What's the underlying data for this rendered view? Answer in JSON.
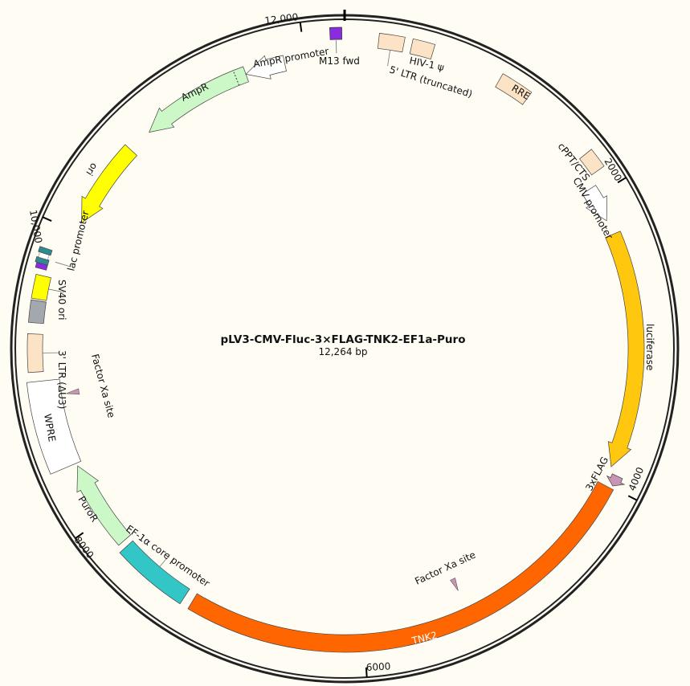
{
  "plasmid": {
    "name": "pLV3-CMV-Fluc-3×FLAG-TNK2-EF1a-Puro",
    "length_label": "12,264 bp",
    "length": 12264
  },
  "ticks": [
    {
      "pos": 2000,
      "label": "2000"
    },
    {
      "pos": 4000,
      "label": "4000"
    },
    {
      "pos": 6000,
      "label": "6000"
    },
    {
      "pos": 8000,
      "label": "8000"
    },
    {
      "pos": 10000,
      "label": "10,000"
    },
    {
      "pos": 12000,
      "label": "12,000"
    }
  ],
  "features": [
    {
      "name": "5' LTR (truncated)",
      "start": 215,
      "end": 375,
      "type": "box",
      "color": "#fde3c5"
    },
    {
      "name": "HIV-1 ψ",
      "start": 425,
      "end": 565,
      "type": "box",
      "color": "#fde3c5"
    },
    {
      "name": "RRE",
      "start": 1020,
      "end": 1230,
      "type": "box",
      "color": "#fde3c5"
    },
    {
      "name": "cPPT/CTS",
      "start": 1740,
      "end": 1870,
      "type": "box",
      "color": "#fde3c5"
    },
    {
      "name": "CMV promoter",
      "start": 1940,
      "end": 2180,
      "type": "arrow",
      "direction": "forward",
      "color": "#ffffff"
    },
    {
      "name": "luciferase",
      "start": 2280,
      "end": 3880,
      "type": "arrow",
      "direction": "forward",
      "color": "#ffc80f"
    },
    {
      "name": "3xFLAG",
      "start": 3920,
      "end": 3990,
      "type": "arrow",
      "direction": "forward",
      "color": "#c896b4"
    },
    {
      "name": "TNK2",
      "start": 4010,
      "end": 7190,
      "type": "box",
      "color": "#ff6600"
    },
    {
      "name": "Factor Xa site",
      "start": 5270,
      "end": 5282,
      "type": "site",
      "color": "#c896b4"
    },
    {
      "name": "EF-1α core promoter",
      "start": 7250,
      "end": 7760,
      "type": "box",
      "color": "#33c6c6"
    },
    {
      "name": "PuroR",
      "start": 7800,
      "end": 8390,
      "type": "arrow",
      "direction": "forward",
      "color": "#ccf8c8"
    },
    {
      "name": "WPRE",
      "start": 8410,
      "end": 8990,
      "type": "box",
      "color": "#ffffff"
    },
    {
      "name": "Factor Xa site",
      "start": 8880,
      "end": 8892,
      "type": "site",
      "color": "#c896b4"
    },
    {
      "name": "3' LTR (ΔU3)",
      "start": 9050,
      "end": 9290,
      "type": "box",
      "color": "#fde3c5"
    },
    {
      "name": "",
      "start": 9360,
      "end": 9500,
      "type": "box",
      "color": "#a3a7ae"
    },
    {
      "name": "SV40 ori",
      "start": 9510,
      "end": 9660,
      "type": "box",
      "color": "#ffff00"
    },
    {
      "name": "lac promoter",
      "start": 9700,
      "end": 9830,
      "type": "lac",
      "color": "#2f8b91"
    },
    {
      "name": "ori",
      "start": 10070,
      "end": 10660,
      "type": "arrow",
      "direction": "reverse",
      "color": "#ffff00"
    },
    {
      "name": "AmpR",
      "start": 10830,
      "end": 11590,
      "type": "arrow",
      "direction": "reverse",
      "color": "#ccf8c8"
    },
    {
      "name": "AmpR promoter",
      "start": 11590,
      "end": 11860,
      "type": "arrow",
      "direction": "reverse",
      "color": "#ffffff"
    },
    {
      "name": "M13 fwd",
      "start": 12180,
      "end": 12240,
      "type": "primer",
      "color": "#8a2be2"
    }
  ]
}
